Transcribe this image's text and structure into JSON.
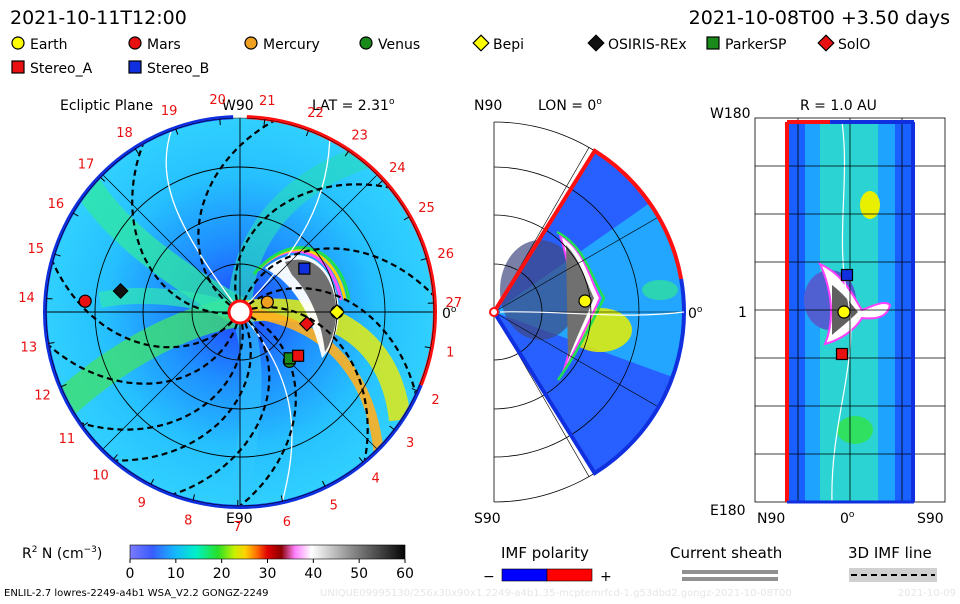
{
  "header": {
    "obs_time": "2021-10-11T12:00",
    "model_time": "2021-10-08T00 +3.50 days"
  },
  "legend": [
    {
      "label": "Earth",
      "marker": "circle",
      "color": "#ffff00"
    },
    {
      "label": "Mars",
      "marker": "circle",
      "color": "#e81010"
    },
    {
      "label": "Mercury",
      "marker": "circle",
      "color": "#f0a020"
    },
    {
      "label": "Venus",
      "marker": "circle",
      "color": "#1a8a1a"
    },
    {
      "label": "Bepi",
      "marker": "diamond",
      "color": "#ffff00"
    },
    {
      "label": "OSIRIS-REx",
      "marker": "diamond",
      "color": "#111111"
    },
    {
      "label": "ParkerSP",
      "marker": "square",
      "color": "#1a8a1a"
    },
    {
      "label": "SolO",
      "marker": "diamond",
      "color": "#e81010"
    },
    {
      "label": "Stereo_A",
      "marker": "square",
      "color": "#e81010"
    },
    {
      "label": "Stereo_B",
      "marker": "square",
      "color": "#1030e0"
    }
  ],
  "panels": {
    "ecliptic": {
      "title": "Ecliptic Plane",
      "top_label": "W90",
      "lat_label": "LAT = 2.31",
      "lat_deg": "o",
      "bottom_label": "E90",
      "right_label": "0",
      "right_deg": "o"
    },
    "meridional": {
      "top_label": "N90",
      "lon_label": "LON = 0",
      "lon_deg": "o",
      "bottom_label": "S90",
      "right_label": "0",
      "right_deg": "o"
    },
    "radial": {
      "r_label": "R = 1.0 AU",
      "top_left_label": "W180",
      "left_mid_label": "1",
      "bottom_left_label": "E180",
      "bottom_labels": [
        "N90",
        "0",
        "S90"
      ],
      "bottom_mid_deg": "o"
    }
  },
  "carrington_ticks": [
    "20",
    "21",
    "22",
    "23",
    "24",
    "25",
    "26",
    "27",
    "1",
    "2",
    "3",
    "4",
    "5",
    "6",
    "7",
    "8",
    "9",
    "10",
    "11",
    "12",
    "13",
    "14",
    "15",
    "16",
    "17",
    "18",
    "19"
  ],
  "colorbar": {
    "label": "R",
    "label_sup": "2",
    "label_rest": " N (cm",
    "label_exp": "−3",
    "label_close": ")",
    "min": 0,
    "max": 60,
    "ticks": [
      "0",
      "10",
      "20",
      "30",
      "40",
      "50",
      "60"
    ]
  },
  "imf_polarity": {
    "title": "IMF polarity",
    "minus": "−",
    "plus": "+",
    "neg_color": "#0000ff",
    "pos_color": "#ff0000"
  },
  "current_sheath": {
    "title": "Current sheath"
  },
  "imf_line": {
    "title": "3D IMF line"
  },
  "footer": {
    "left": "ENLIL-2.7 lowres-2249-a4b1 WSA_V2.2 GONGZ-2249",
    "right_watermark": "UNIQUE09995130/256x30x90x1.2249-a4b1.35-mcptemrfcd-1.g53dbd2.gongz-2021-10-08T00",
    "right_date": "2021-10-09"
  },
  "chart_data": {
    "type": "heatmap",
    "title": "",
    "quantity": "R2 N (cm-3)",
    "zlim": [
      0,
      60
    ],
    "panels": [
      "Ecliptic Plane",
      "LON = 0",
      "R = 1.0 AU"
    ],
    "body_positions_ecliptic": [
      {
        "name": "Earth",
        "r_au": 1.0,
        "lon_deg": 0
      },
      {
        "name": "Mars",
        "r_au": 1.6,
        "lon_deg": 176
      },
      {
        "name": "Mercury",
        "r_au": 0.3,
        "lon_deg": 20
      },
      {
        "name": "Venus",
        "r_au": 0.72,
        "lon_deg": -45
      },
      {
        "name": "Bepi",
        "r_au": 1.0,
        "lon_deg": 0
      },
      {
        "name": "OSIRIS-REx",
        "r_au": 1.25,
        "lon_deg": 170
      },
      {
        "name": "ParkerSP",
        "r_au": 0.7,
        "lon_deg": -43
      },
      {
        "name": "SolO",
        "r_au": 0.7,
        "lon_deg": -10
      },
      {
        "name": "Stereo_A",
        "r_au": 0.75,
        "lon_deg": -37
      },
      {
        "name": "Stereo_B",
        "r_au": 0.8,
        "lon_deg": 34
      }
    ]
  }
}
